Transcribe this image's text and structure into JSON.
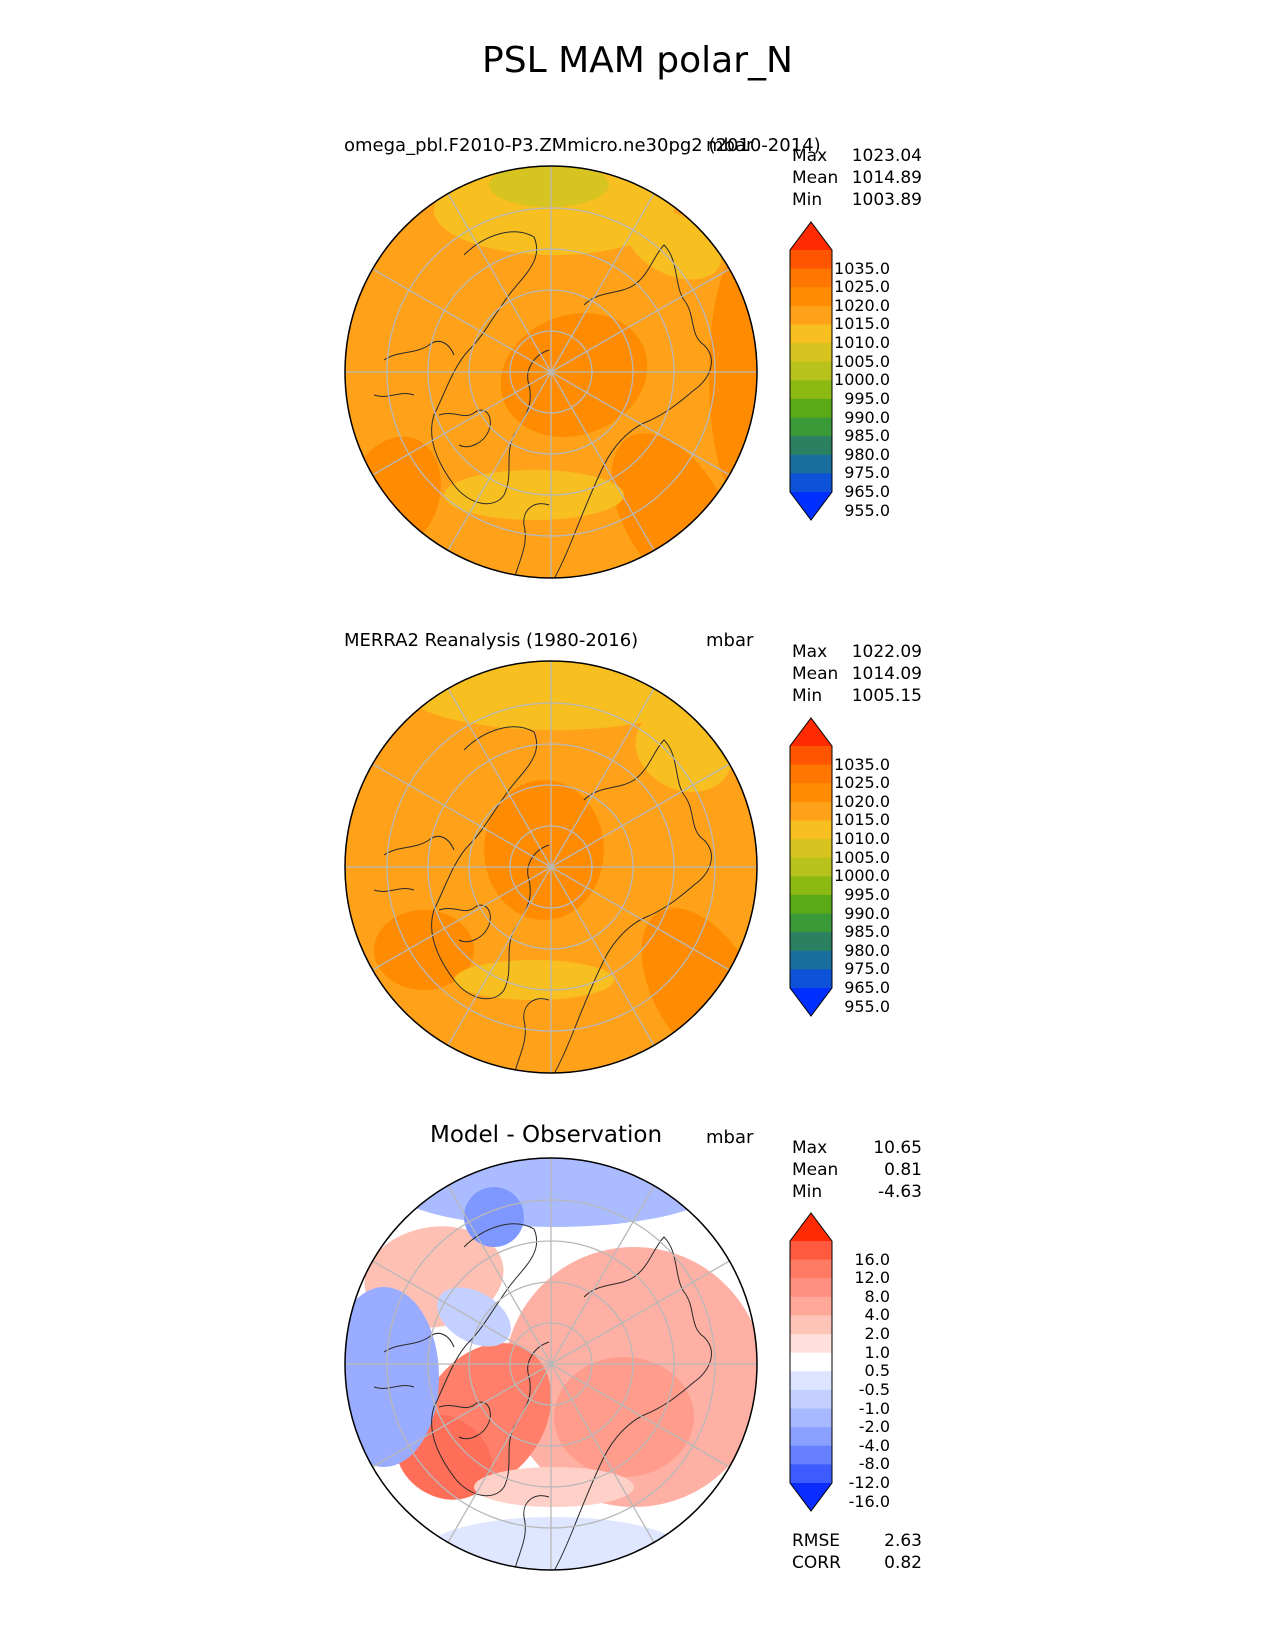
{
  "title": "PSL MAM polar_N",
  "panels": [
    {
      "id": "model",
      "left_title": "omega_pbl.F2010-P3.ZMmicro.ne30pg2 (2010-2014)",
      "units": "mbar",
      "stats": [
        {
          "label": "Max",
          "value": "1023.04"
        },
        {
          "label": "Mean",
          "value": "1014.89"
        },
        {
          "label": "Min",
          "value": "1003.89"
        }
      ],
      "colorbar": {
        "ticks": [
          "1035.0",
          "1025.0",
          "1020.0",
          "1015.0",
          "1010.0",
          "1005.0",
          "1000.0",
          "995.0",
          "990.0",
          "985.0",
          "980.0",
          "975.0",
          "965.0",
          "955.0"
        ],
        "colors": [
          "#ff2a00",
          "#ff5500",
          "#ff7700",
          "#ff8c00",
          "#ffa21a",
          "#f7c020",
          "#d8c420",
          "#b8c21c",
          "#8cba12",
          "#5aaa18",
          "#3a9a38",
          "#2a8060",
          "#1a6e9e",
          "#0d52d8",
          "#0030ff"
        ]
      }
    },
    {
      "id": "obs",
      "left_title": "MERRA2 Reanalysis (1980-2016)",
      "units": "mbar",
      "stats": [
        {
          "label": "Max",
          "value": "1022.09"
        },
        {
          "label": "Mean",
          "value": "1014.09"
        },
        {
          "label": "Min",
          "value": "1005.15"
        }
      ],
      "colorbar": {
        "ticks": [
          "1035.0",
          "1025.0",
          "1020.0",
          "1015.0",
          "1010.0",
          "1005.0",
          "1000.0",
          "995.0",
          "990.0",
          "985.0",
          "980.0",
          "975.0",
          "965.0",
          "955.0"
        ],
        "colors": [
          "#ff2a00",
          "#ff5500",
          "#ff7700",
          "#ff8c00",
          "#ffa21a",
          "#f7c020",
          "#d8c420",
          "#b8c21c",
          "#8cba12",
          "#5aaa18",
          "#3a9a38",
          "#2a8060",
          "#1a6e9e",
          "#0d52d8",
          "#0030ff"
        ]
      }
    },
    {
      "id": "diff",
      "left_title": "Model - Observation",
      "units": "mbar",
      "stats": [
        {
          "label": "Max",
          "value": "10.65"
        },
        {
          "label": "Mean",
          "value": "0.81"
        },
        {
          "label": "Min",
          "value": "-4.63"
        }
      ],
      "colorbar": {
        "ticks": [
          "16.0",
          "12.0",
          "8.0",
          "4.0",
          "2.0",
          "1.0",
          "0.5",
          "-0.5",
          "-1.0",
          "-2.0",
          "-4.0",
          "-8.0",
          "-12.0",
          "-16.0"
        ],
        "colors": [
          "#ff2a00",
          "#ff5a40",
          "#ff7a62",
          "#ff9080",
          "#ffa898",
          "#ffc4b8",
          "#ffe0da",
          "#ffffff",
          "#dde4ff",
          "#c4d0ff",
          "#a6b8ff",
          "#8aa0ff",
          "#6680ff",
          "#3c5cff",
          "#0a2cff"
        ]
      },
      "metrics": [
        {
          "label": "RMSE",
          "value": "2.63"
        },
        {
          "label": "CORR",
          "value": "0.82"
        }
      ]
    }
  ],
  "colors": {
    "base_orange": "#ffa21a",
    "deep_orange": "#ff8c00",
    "yellow": "#f7c020",
    "olive": "#d8c420",
    "grid": "#b8b8b8"
  }
}
